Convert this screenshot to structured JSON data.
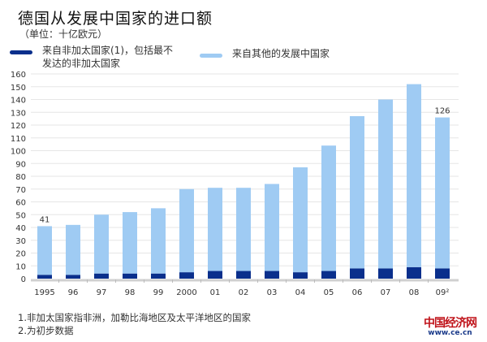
{
  "header": {
    "title": "德国从发展中国家的进口额",
    "unit": "（单位：十亿欧元）"
  },
  "footnotes": [
    "1.非加太国家指非洲，加勒比海地区及太平洋地区的国家",
    "2.为初步数据"
  ],
  "logo": {
    "name": "中国经济网",
    "url": "www.ce.cn"
  },
  "chart_data": {
    "type": "bar",
    "stacked": true,
    "title": "德国从发展中国家的进口额",
    "subtitle": "（单位：十亿欧元）",
    "categories": [
      "1995",
      "96",
      "97",
      "98",
      "99",
      "2000",
      "01",
      "02",
      "03",
      "04",
      "05",
      "06",
      "07",
      "08",
      "09²"
    ],
    "series": [
      {
        "name": "来自非加太国家(1)，包括最不发达的非加太国家",
        "color": "#0a2f8c",
        "values": [
          3,
          3,
          4,
          4,
          4,
          5,
          6,
          6,
          6,
          5,
          6,
          8,
          8,
          9,
          8
        ]
      },
      {
        "name": "来自其他的发展中国家",
        "color": "#9fcbf3",
        "values": [
          38,
          39,
          46,
          48,
          51,
          65,
          65,
          65,
          68,
          82,
          98,
          119,
          132,
          143,
          118
        ]
      }
    ],
    "data_labels": [
      {
        "category": "1995",
        "text": "41"
      },
      {
        "category": "09²",
        "text": "126"
      }
    ],
    "yticks": [
      0,
      10,
      20,
      30,
      40,
      50,
      60,
      70,
      80,
      90,
      100,
      110,
      120,
      130,
      140,
      150,
      160
    ],
    "ylim": [
      0,
      160
    ],
    "grid": true,
    "legend_position": "top"
  }
}
